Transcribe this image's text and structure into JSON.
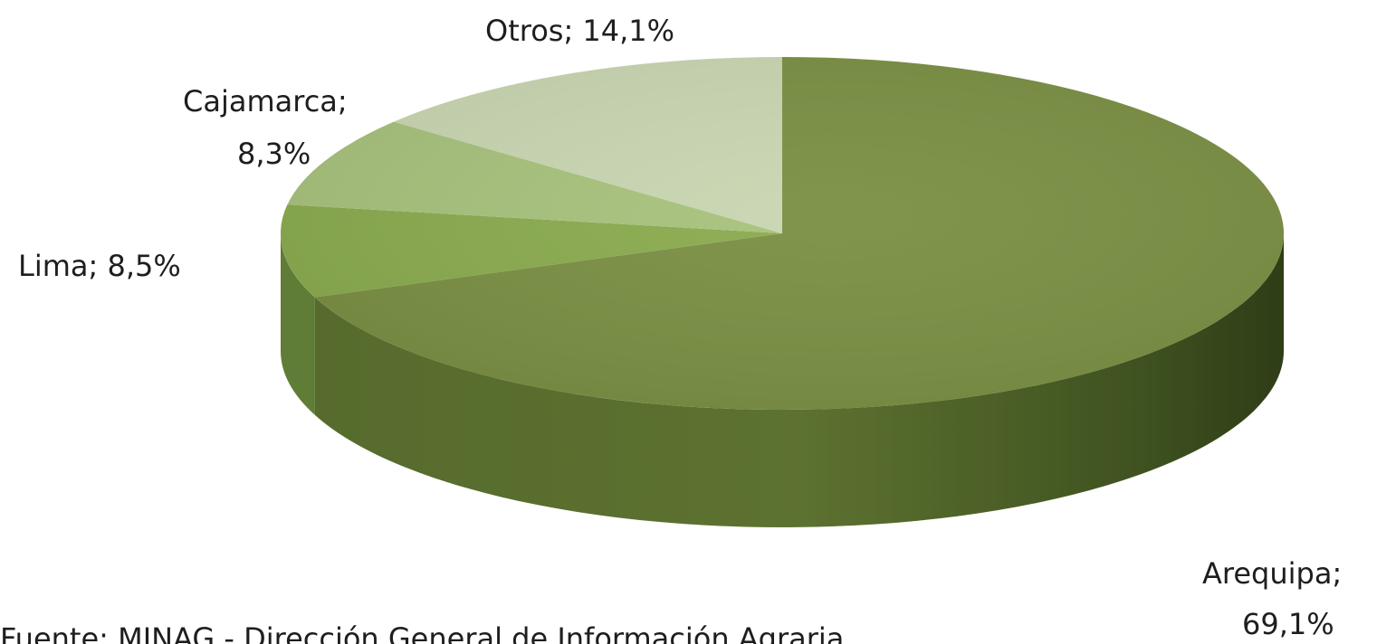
{
  "chart_data": {
    "type": "pie",
    "variant": "3d",
    "title": "",
    "categories": [
      "Arequipa",
      "Lima",
      "Cajamarca",
      "Otros"
    ],
    "values": [
      69.1,
      8.5,
      8.3,
      14.1
    ],
    "labels": [
      "Arequipa;",
      "69,1%",
      "Lima; 8,5%",
      "Cajamarca;",
      "8,3%",
      "Otros; 14,1%"
    ],
    "colors": [
      "#7a8f43",
      "#8aab4e",
      "#a8c27c",
      "#c9d6b1"
    ],
    "side_colors": [
      "#4a5f26",
      "#5f7d36",
      "#7a9654",
      "#98a887"
    ],
    "label_style": "category; percent",
    "legend": "none"
  },
  "footer": {
    "source_text": "Fuente: MINAG - Dirección General de Información Agraria"
  }
}
